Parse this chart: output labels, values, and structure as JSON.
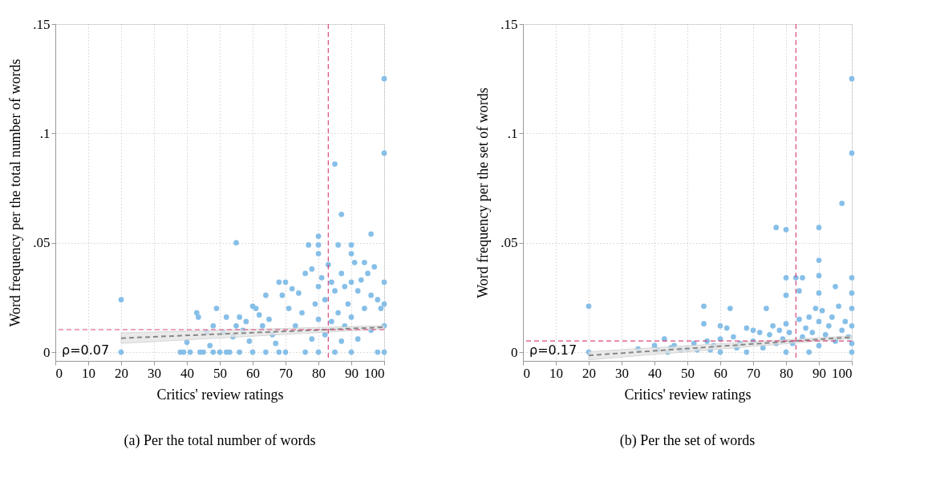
{
  "chart_data": [
    {
      "type": "scatter",
      "title": "(a) Per the total number of words",
      "xlabel": "Critics' review ratings",
      "ylabel": "Word frequency per the total number of words",
      "xlim": [
        0,
        100
      ],
      "xticks": [
        0,
        10,
        20,
        30,
        40,
        50,
        60,
        70,
        80,
        90,
        100
      ],
      "ylim": [
        -0.004,
        0.15
      ],
      "yticks": [
        {
          "value": 0,
          "label": "0"
        },
        {
          "value": 0.05,
          "label": ".05"
        },
        {
          "value": 0.1,
          "label": ".1"
        },
        {
          "value": 0.15,
          "label": ".15"
        }
      ],
      "grid": true,
      "annotations": [
        "ρ=0.07"
      ],
      "ref_lines": [
        {
          "axis": "x",
          "value": 83,
          "label": null,
          "color": "#d6477a",
          "line_style": "dashed"
        },
        {
          "axis": "y",
          "value": 0.0103,
          "label": null,
          "color": "#d6477a",
          "line_style": "dashed"
        }
      ],
      "series": [
        {
          "marker": "circle",
          "color": "#86bfe8",
          "x": [
            20,
            20,
            38,
            39,
            40,
            41,
            43,
            43.5,
            44,
            45,
            46,
            47,
            48,
            48,
            49,
            50,
            51,
            52,
            52,
            53,
            54,
            55,
            55,
            56,
            56,
            57,
            58,
            59,
            60,
            60,
            61,
            62,
            63,
            64,
            64,
            65,
            66,
            67,
            68,
            68,
            69,
            70,
            70,
            71,
            72,
            73,
            74,
            75,
            76,
            76,
            77,
            78,
            78,
            79,
            80,
            80,
            80,
            80,
            80,
            80,
            81,
            82,
            82,
            83,
            84,
            84,
            85,
            85,
            85,
            86,
            86,
            87,
            87,
            87,
            88,
            88,
            89,
            90,
            90,
            90,
            90,
            90,
            91,
            92,
            92,
            93,
            94,
            94,
            95,
            96,
            96,
            96,
            97,
            98,
            98,
            99,
            100,
            100,
            100,
            100,
            100,
            100
          ],
          "values": [
            0.024,
            0,
            0,
            0,
            0.0045,
            0,
            0.018,
            0.016,
            0,
            0,
            0.009,
            0.003,
            0.012,
            0,
            0.02,
            0,
            0.009,
            0.016,
            0,
            0,
            0.007,
            0.05,
            0.012,
            0.016,
            0,
            0.01,
            0.014,
            0.005,
            0.021,
            0,
            0.02,
            0.017,
            0.012,
            0.026,
            0,
            0.015,
            0.008,
            0.004,
            0.032,
            0,
            0.026,
            0.032,
            0,
            0.02,
            0.029,
            0.012,
            0.027,
            0.018,
            0.036,
            0,
            0.049,
            0.038,
            0.006,
            0.022,
            0.053,
            0.049,
            0.045,
            0.03,
            0.015,
            0,
            0.034,
            0.008,
            0.024,
            0.04,
            0.032,
            0.014,
            0.086,
            0.028,
            0,
            0.049,
            0.018,
            0.063,
            0.036,
            0.005,
            0.03,
            0.012,
            0.022,
            0.049,
            0.045,
            0.032,
            0,
            0.016,
            0.041,
            0.028,
            0.006,
            0.033,
            0.041,
            0.02,
            0.036,
            0.054,
            0.026,
            0.01,
            0.039,
            0.024,
            0,
            0.02,
            0.125,
            0.091,
            0.032,
            0.022,
            0.012,
            0
          ]
        },
        {
          "type": "line",
          "marker": "none",
          "color": "#888888",
          "line_style": "dashed",
          "x": [
            20,
            100
          ],
          "values": [
            0.0064,
            0.0114
          ],
          "lower": [
            0.004,
            0.0106
          ],
          "upper": [
            0.0088,
            0.0121
          ]
        }
      ]
    },
    {
      "type": "scatter",
      "title": "(b) Per the set of words",
      "xlabel": "Critics' review ratings",
      "ylabel": "Word frequency per the set of words",
      "xlim": [
        0,
        100
      ],
      "xticks": [
        0,
        10,
        20,
        30,
        40,
        50,
        60,
        70,
        80,
        90,
        100
      ],
      "ylim": [
        -0.004,
        0.15
      ],
      "yticks": [
        {
          "value": 0,
          "label": "0"
        },
        {
          "value": 0.05,
          "label": ".05"
        },
        {
          "value": 0.1,
          "label": ".1"
        },
        {
          "value": 0.15,
          "label": ".15"
        }
      ],
      "grid": true,
      "annotations": [
        "ρ=0.17"
      ],
      "ref_lines": [
        {
          "axis": "x",
          "value": 83,
          "label": null,
          "color": "#d6477a",
          "line_style": "dashed"
        },
        {
          "axis": "y",
          "value": 0.0051,
          "label": null,
          "color": "#d6477a",
          "line_style": "dashed"
        }
      ],
      "series": [
        {
          "marker": "circle",
          "color": "#86bfe8",
          "x": [
            20,
            20,
            35,
            40,
            41,
            43,
            44,
            45,
            46,
            48,
            50,
            52,
            53,
            55,
            55,
            56,
            57,
            58,
            60,
            60,
            60,
            62,
            63,
            64,
            65,
            66,
            68,
            68,
            70,
            70,
            72,
            73,
            74,
            75,
            76,
            77,
            77,
            78,
            79,
            80,
            80,
            80,
            80,
            80,
            81,
            82,
            83,
            84,
            84,
            85,
            85,
            86,
            87,
            87,
            88,
            89,
            90,
            90,
            90,
            90,
            90,
            90,
            91,
            92,
            93,
            94,
            95,
            95,
            96,
            97,
            97,
            98,
            99,
            100,
            100,
            100,
            100,
            100,
            100,
            100,
            100
          ],
          "values": [
            0.021,
            0,
            0.0015,
            0.003,
            0.001,
            0.006,
            0,
            0.002,
            0.003,
            0.001,
            0.0015,
            0.004,
            0.001,
            0.021,
            0.013,
            0.005,
            0.001,
            0.003,
            0.012,
            0.006,
            0,
            0.011,
            0.02,
            0.007,
            0.002,
            0.004,
            0.011,
            0,
            0.01,
            0.005,
            0.009,
            0.002,
            0.02,
            0.008,
            0.012,
            0.057,
            0.004,
            0.01,
            0.006,
            0.056,
            0.034,
            0.026,
            0.013,
            0,
            0.009,
            0.004,
            0.034,
            0.028,
            0.015,
            0.034,
            0.007,
            0.011,
            0.016,
            0,
            0.009,
            0.02,
            0.057,
            0.042,
            0.035,
            0.027,
            0.014,
            0.003,
            0.019,
            0.008,
            0.012,
            0.016,
            0.03,
            0.005,
            0.021,
            0.068,
            0.01,
            0.014,
            0.007,
            0.125,
            0.091,
            0.034,
            0.027,
            0.02,
            0.012,
            0.004,
            0
          ]
        },
        {
          "type": "line",
          "marker": "none",
          "color": "#888888",
          "line_style": "dashed",
          "x": [
            20,
            100
          ],
          "values": [
            -0.0015,
            0.0069
          ],
          "lower": [
            -0.0035,
            0.0063
          ],
          "upper": [
            0.0002,
            0.0075
          ]
        }
      ]
    }
  ]
}
